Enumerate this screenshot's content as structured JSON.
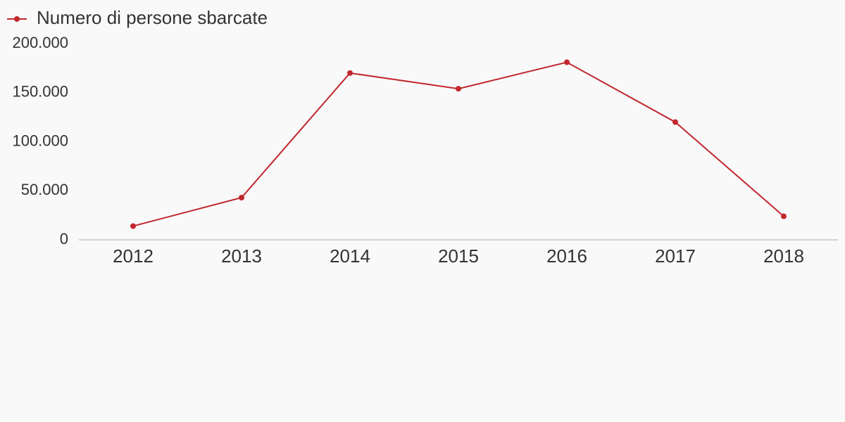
{
  "chart_data": {
    "type": "line",
    "categories": [
      "2012",
      "2013",
      "2014",
      "2015",
      "2016",
      "2017",
      "2018"
    ],
    "series": [
      {
        "name": "Numero di persone sbarcate",
        "color": "#c1272d",
        "values": [
          14000,
          43000,
          170000,
          154000,
          181000,
          120000,
          24000
        ]
      }
    ],
    "ylim": [
      0,
      200000
    ],
    "yticks": [
      0,
      {
        "value": 50000,
        "label": "50.000"
      },
      {
        "value": 100000,
        "label": "100.000"
      },
      {
        "value": 150000,
        "label": "150.000"
      },
      {
        "value": 200000,
        "label": "200.000"
      }
    ],
    "grid": false,
    "legend": "top-left"
  }
}
